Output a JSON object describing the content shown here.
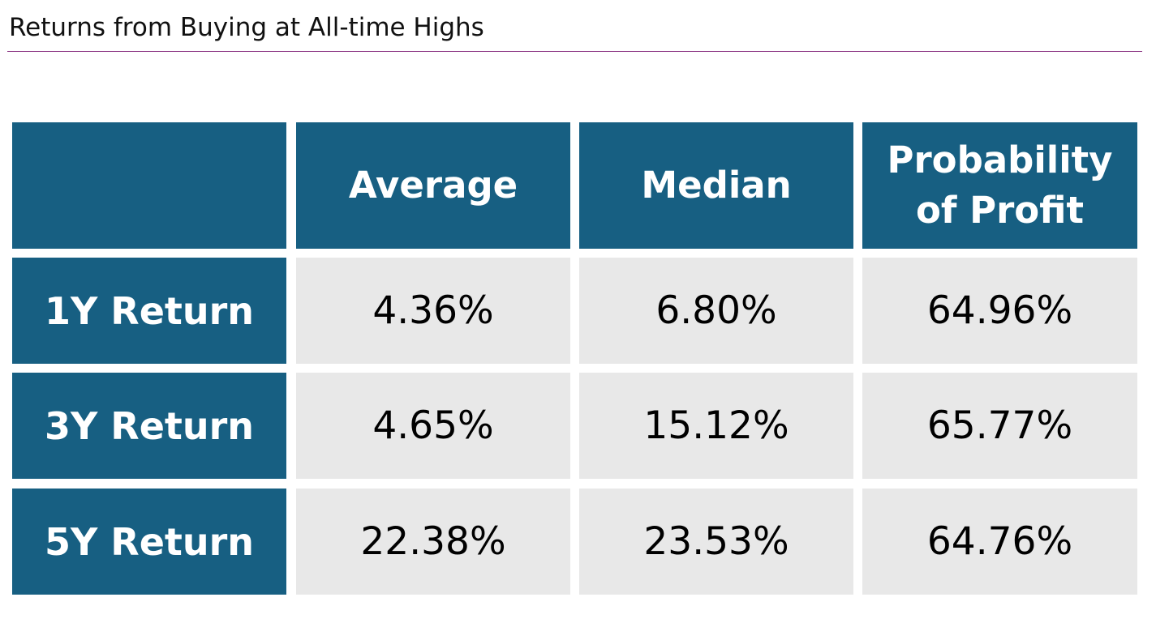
{
  "title": "Returns from Buying at All-time Highs",
  "table": {
    "corner": "",
    "columns": [
      "Average",
      "Median",
      "Probability of Profit"
    ],
    "rows": [
      {
        "label": "1Y Return",
        "values": [
          "4.36%",
          "6.80%",
          "64.96%"
        ]
      },
      {
        "label": "3Y Return",
        "values": [
          "4.65%",
          "15.12%",
          "65.77%"
        ]
      },
      {
        "label": "5Y Return",
        "values": [
          "22.38%",
          "23.53%",
          "64.76%"
        ]
      }
    ]
  },
  "colors": {
    "header_bg": "#175f82",
    "cell_bg": "#e8e8e8",
    "title_rule": "#8e3a86"
  }
}
